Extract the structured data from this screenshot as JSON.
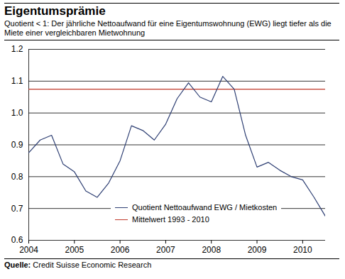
{
  "chart_data": {
    "type": "line",
    "title": "Eigentumsprämie",
    "subtitle": "Quotient < 1: Der jährliche Nettoaufwand für eine Eigentumswohnung (EWG) liegt tiefer als die Miete einer vergleichbaren Mietwohnung",
    "source": "Quelle: Credit Suisse Economic Research",
    "x": [
      2004,
      2004.25,
      2004.5,
      2004.75,
      2005,
      2005.25,
      2005.5,
      2005.75,
      2006,
      2006.25,
      2006.5,
      2006.75,
      2007,
      2007.25,
      2007.5,
      2007.75,
      2008,
      2008.25,
      2008.5,
      2008.75,
      2009,
      2009.25,
      2009.5,
      2009.75,
      2010,
      2010.25,
      2010.5
    ],
    "series": [
      {
        "name": "Quotient Nettoaufwand EWG / Mietkosten",
        "color": "#2e3f73",
        "values": [
          0.875,
          0.915,
          0.93,
          0.84,
          0.815,
          0.755,
          0.735,
          0.78,
          0.85,
          0.96,
          0.945,
          0.915,
          0.965,
          1.045,
          1.095,
          1.05,
          1.035,
          1.115,
          1.075,
          0.93,
          0.83,
          0.845,
          0.82,
          0.8,
          0.79,
          0.735,
          0.675
        ]
      },
      {
        "name": "Mittelwert 1993 - 2010",
        "color": "#c0392b",
        "values": [
          1.075,
          1.075,
          1.075,
          1.075,
          1.075,
          1.075,
          1.075,
          1.075,
          1.075,
          1.075,
          1.075,
          1.075,
          1.075,
          1.075,
          1.075,
          1.075,
          1.075,
          1.075,
          1.075,
          1.075,
          1.075,
          1.075,
          1.075,
          1.075,
          1.075,
          1.075,
          1.075
        ]
      }
    ],
    "xlim": [
      2004,
      2010.5
    ],
    "xticks": [
      2004,
      2005,
      2006,
      2007,
      2008,
      2009,
      2010
    ],
    "ylim": [
      0.6,
      1.2
    ],
    "yticks": [
      0.6,
      0.7,
      0.8,
      0.9,
      {
        "value": 1,
        "label": "1.0"
      },
      1.1,
      1.2
    ],
    "grid": true,
    "legend": "bottom"
  }
}
